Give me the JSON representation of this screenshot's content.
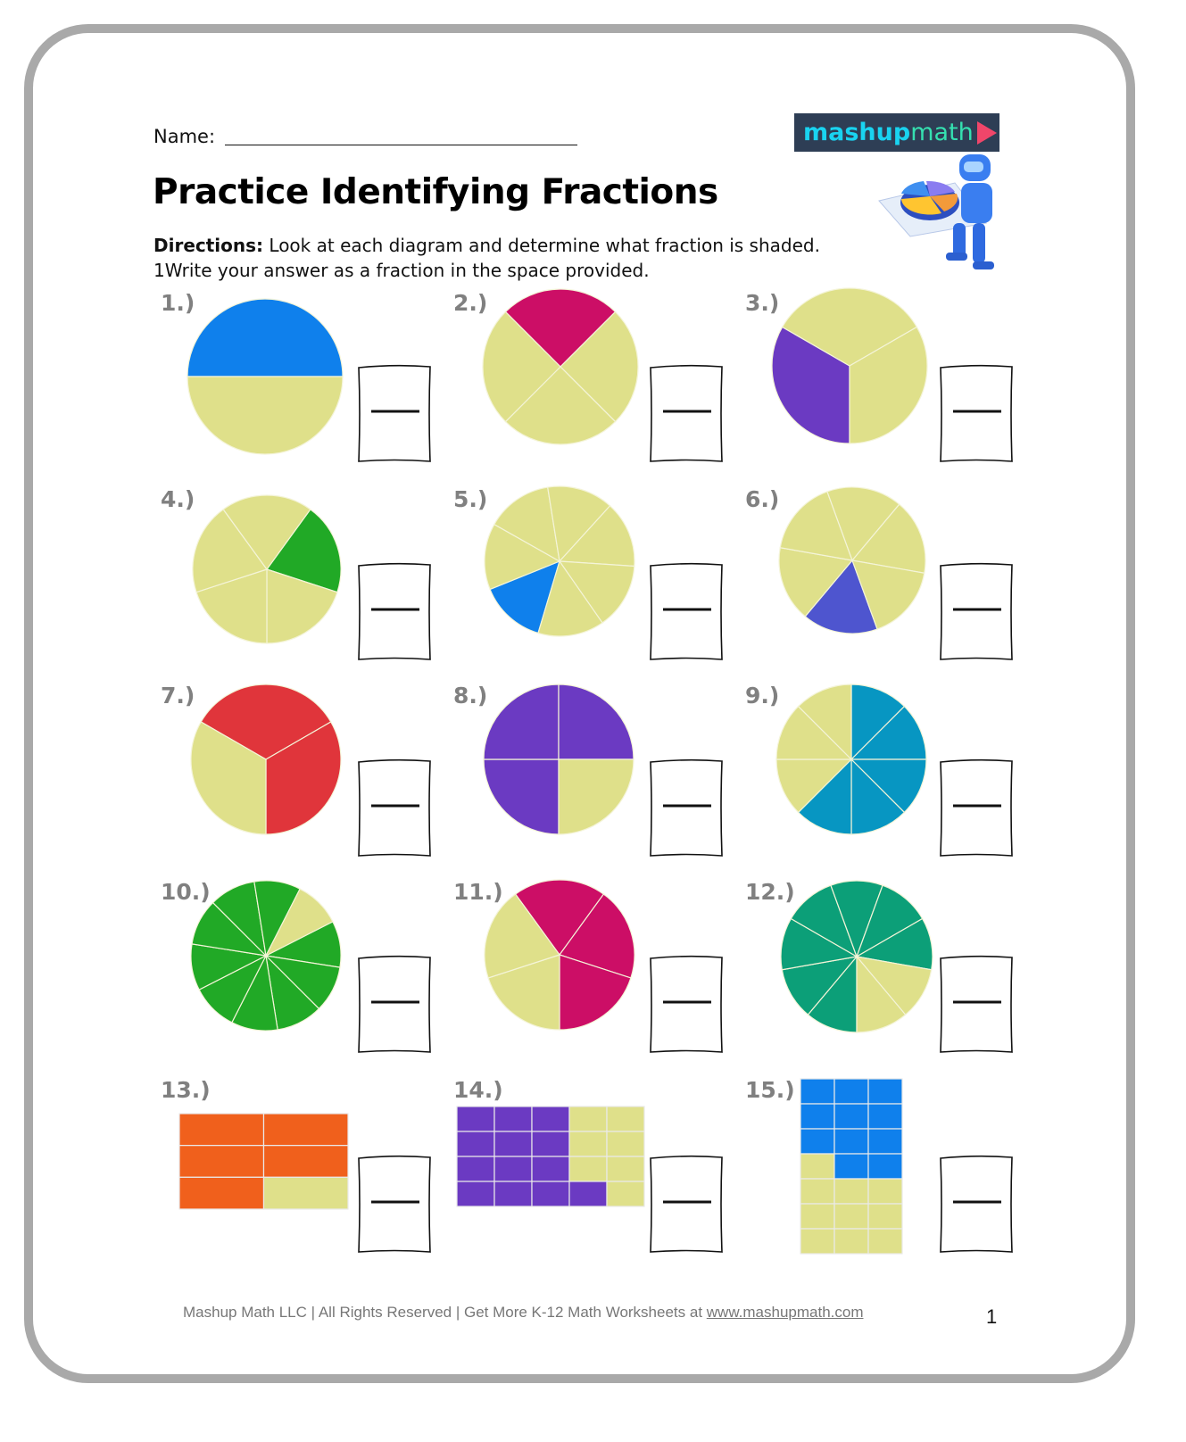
{
  "header": {
    "name_label": "Name:",
    "title": "Practice Identifying Fractions",
    "directions_bold": "Directions:",
    "directions_line1": "Look at each diagram and determine what fraction is shaded.",
    "directions_line2": "1Write your answer as a fraction in the space provided."
  },
  "logo": {
    "part1": "mashup",
    "part2": "math",
    "icon": "play-triangle-icon"
  },
  "colors": {
    "unshaded": "#dfe08a",
    "border": "#a9a9a9",
    "label": "#808080"
  },
  "problems": [
    {
      "label": "1.)",
      "type": "pie",
      "parts": 2,
      "shaded": 1,
      "color": "#0f80ec"
    },
    {
      "label": "2.)",
      "type": "pie",
      "parts": 4,
      "shaded": 1,
      "color": "#cc0e66"
    },
    {
      "label": "3.)",
      "type": "pie",
      "parts": 3,
      "shaded": 1,
      "color": "#6b3ac2"
    },
    {
      "label": "4.)",
      "type": "pie",
      "parts": 5,
      "shaded": 1,
      "color": "#21a926"
    },
    {
      "label": "5.)",
      "type": "pie",
      "parts": 7,
      "shaded": 1,
      "color": "#0f80ec"
    },
    {
      "label": "6.)",
      "type": "pie",
      "parts": 6,
      "shaded": 1,
      "color": "#4e55cf"
    },
    {
      "label": "7.)",
      "type": "pie",
      "parts": 3,
      "shaded": 2,
      "color": "#e0353b"
    },
    {
      "label": "8.)",
      "type": "pie",
      "parts": 4,
      "shaded": 3,
      "color": "#6b3ac2"
    },
    {
      "label": "9.)",
      "type": "pie",
      "parts": 8,
      "shaded": 5,
      "color": "#0796c2"
    },
    {
      "label": "10.)",
      "type": "pie",
      "parts": 10,
      "shaded": 9,
      "color": "#21a926"
    },
    {
      "label": "11.)",
      "type": "pie",
      "parts": 5,
      "shaded": 3,
      "color": "#cc0e66"
    },
    {
      "label": "12.)",
      "type": "pie",
      "parts": 9,
      "shaded": 7,
      "color": "#0c9f78"
    },
    {
      "label": "13.)",
      "type": "grid",
      "cols": 2,
      "rows": 3,
      "shaded": 5,
      "color": "#f0601c"
    },
    {
      "label": "14.)",
      "type": "grid",
      "cols": 5,
      "rows": 4,
      "shaded": 13,
      "color": "#6b3ac2"
    },
    {
      "label": "15.)",
      "type": "grid",
      "cols": 3,
      "rows": 7,
      "shaded": 11,
      "color": "#0f80ec"
    }
  ],
  "footer": {
    "text": "Mashup Math LLC | All Rights Reserved | Get More K-12 Math Worksheets at ",
    "link": "www.mashupmath.com",
    "page_number": "1"
  }
}
